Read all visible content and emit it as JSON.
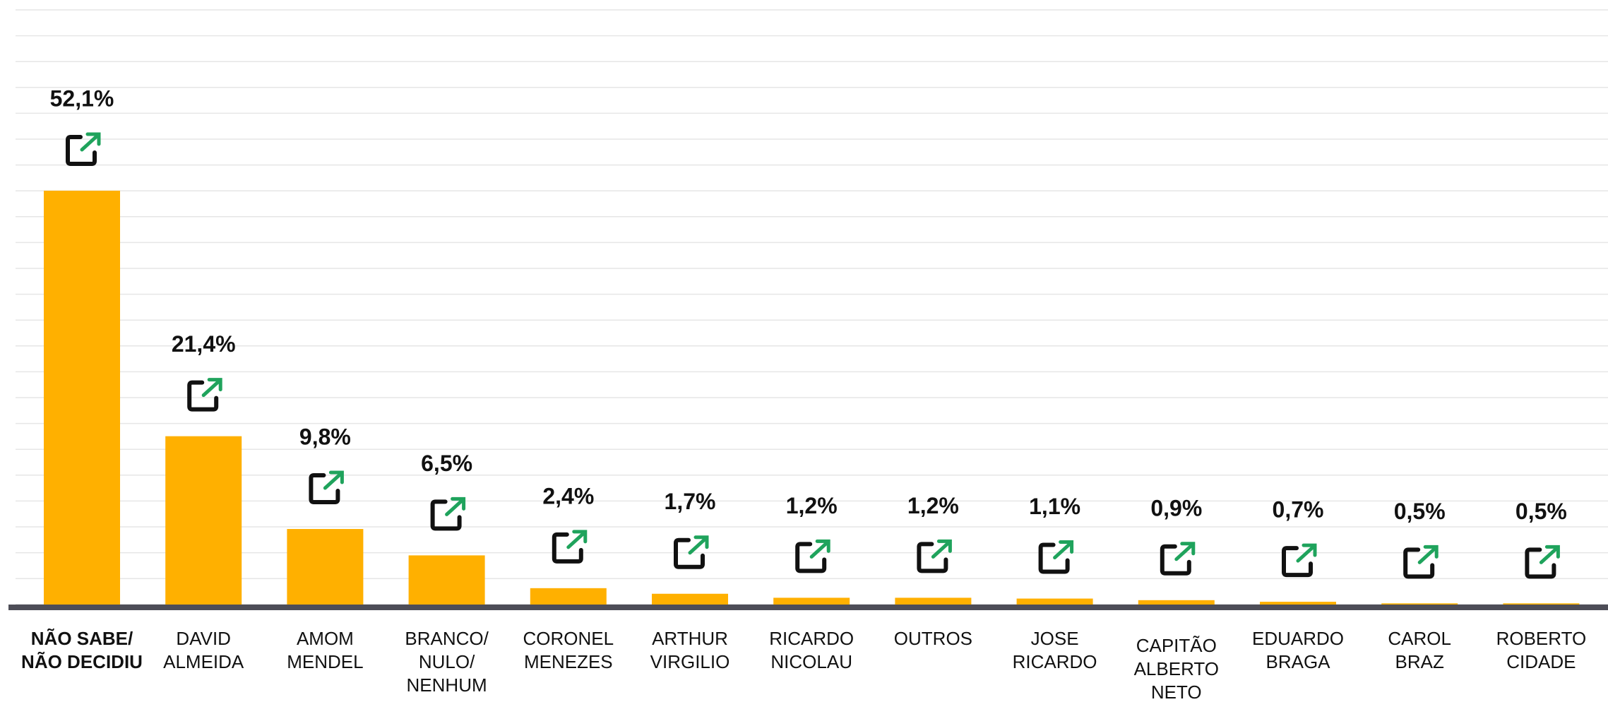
{
  "chart_data": {
    "type": "bar",
    "color": "#ffb000",
    "categories": [
      [
        "NÃO SABE/",
        "NÃO DECIDIU"
      ],
      [
        "DAVID",
        "ALMEIDA"
      ],
      [
        "AMOM",
        "MENDEL"
      ],
      [
        "BRANCO/",
        "NULO/",
        "NENHUM"
      ],
      [
        "CORONEL",
        "MENEZES"
      ],
      [
        "ARTHUR",
        "VIRGILIO"
      ],
      [
        "RICARDO",
        "NICOLAU"
      ],
      [
        "OUTROS"
      ],
      [
        "JOSE",
        "RICARDO"
      ],
      [
        "CAPITÃO",
        "ALBERTO",
        "NETO"
      ],
      [
        "EDUARDO",
        "BRAGA"
      ],
      [
        "CAROL",
        "BRAZ"
      ],
      [
        "ROBERTO",
        "CIDADE"
      ]
    ],
    "values": [
      52.1,
      21.4,
      9.8,
      6.5,
      2.4,
      1.7,
      1.2,
      1.2,
      1.1,
      0.9,
      0.7,
      0.5,
      0.5
    ],
    "value_labels": [
      "52,1%",
      "21,4%",
      "9,8%",
      "6,5%",
      "2,4%",
      "1,7%",
      "1,2%",
      "1,2%",
      "1,1%",
      "0,9%",
      "0,7%",
      "0,5%",
      "0,5%"
    ]
  }
}
